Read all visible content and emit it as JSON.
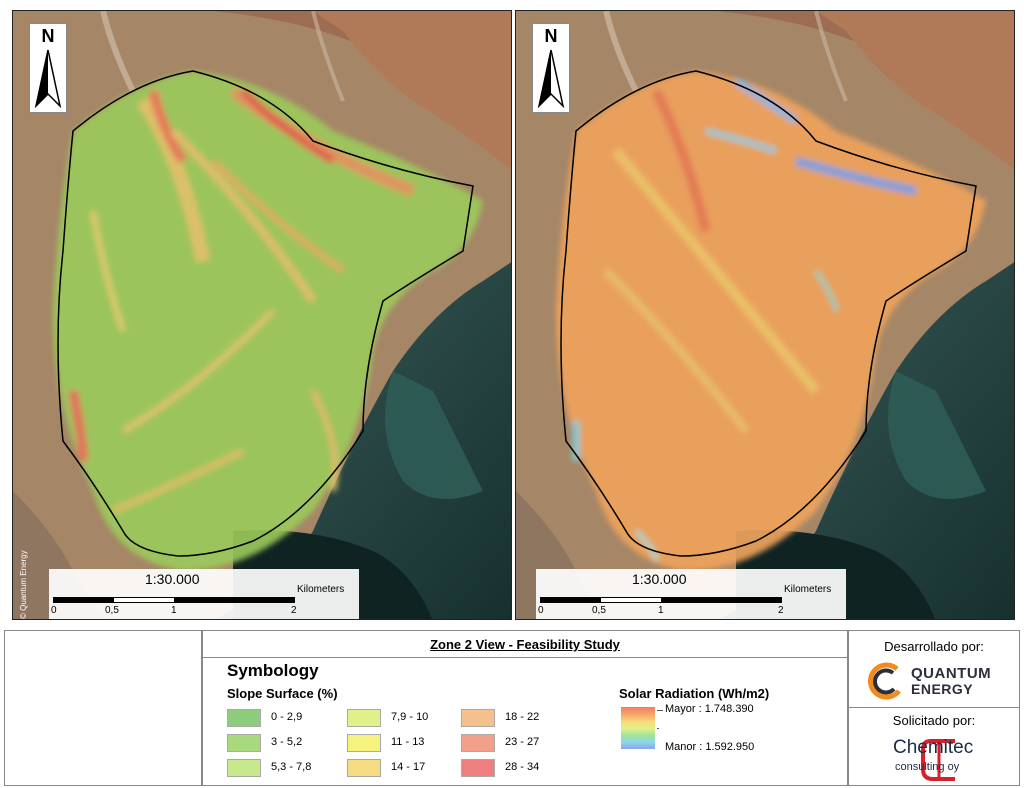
{
  "maps": {
    "left": {
      "north_label": "N",
      "scale_ratio": "1:30.000",
      "scale_unit": "Kilometers",
      "scale_ticks": [
        "0",
        "0,5",
        "1",
        "2"
      ],
      "copyright": "© Quantum Energy"
    },
    "right": {
      "north_label": "N",
      "scale_ratio": "1:30.000",
      "scale_unit": "Kilometers",
      "scale_ticks": [
        "0",
        "0,5",
        "1",
        "2"
      ]
    }
  },
  "legend": {
    "title": "Zone 2 View  - Feasibility Study",
    "symbology_title": "Symbology",
    "slope_title": "Slope Surface (%)",
    "slope_classes": [
      {
        "label": "0 - 2,9",
        "color": "#8dcc7c"
      },
      {
        "label": "3 - 5,2",
        "color": "#a8d97c"
      },
      {
        "label": "5,3 - 7,8",
        "color": "#c8e88e"
      },
      {
        "label": "7,9 - 10",
        "color": "#e2f08c"
      },
      {
        "label": "11 - 13",
        "color": "#f5f27e"
      },
      {
        "label": "14 - 17",
        "color": "#f7dc84"
      },
      {
        "label": "18 - 22",
        "color": "#f5c08e"
      },
      {
        "label": "23 - 27",
        "color": "#f3a08a"
      },
      {
        "label": "28 - 34",
        "color": "#ef7f7f"
      }
    ],
    "solar_title": "Solar Radiation (Wh/m2)",
    "solar_max": "Mayor : 1.748.390",
    "solar_min": "Manor : 1.592.950"
  },
  "credits": {
    "developed_by": "Desarrollado por:",
    "developer_logo": "QUANTUM ENERGY",
    "developer_logo_line1": "QUANTUM",
    "developer_logo_line2": "ENERGY",
    "requested_by": "Solicitado por:",
    "client_logo": "Chemitec consulting oy",
    "client_logo_line1": "Chemitec",
    "client_logo_line2": "consulting oy"
  },
  "colors": {
    "study_outline": "#000000",
    "sea_dark": "#1f3f3e",
    "terrain": "#a88a6c"
  }
}
